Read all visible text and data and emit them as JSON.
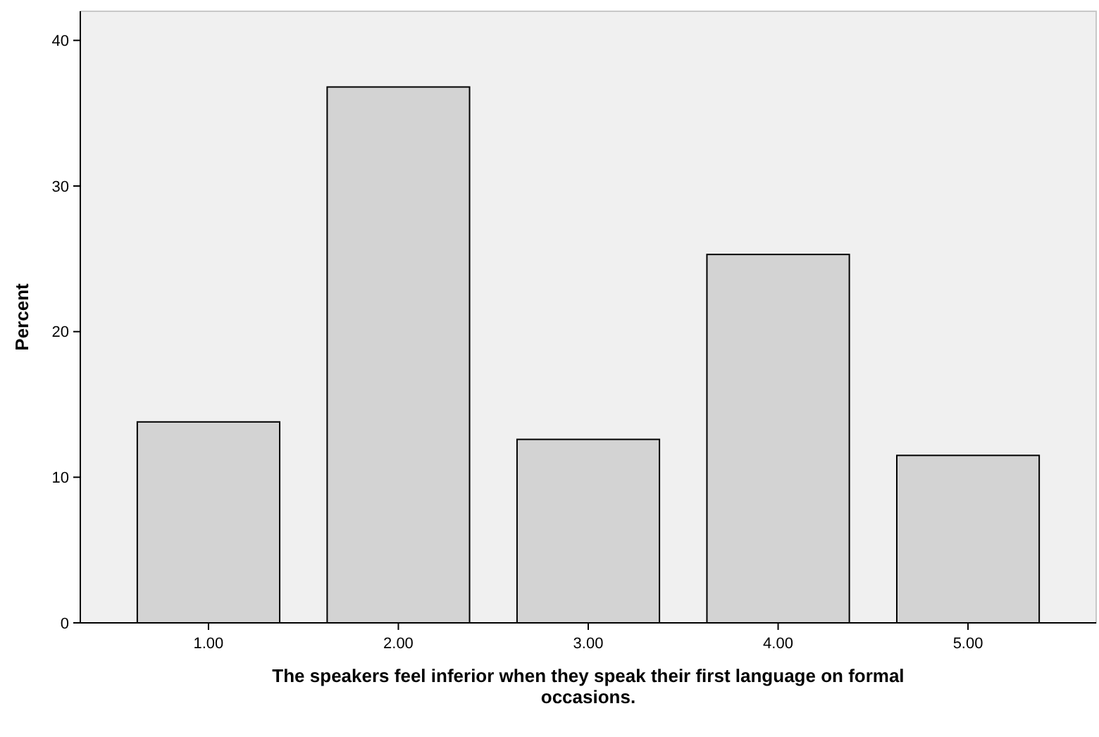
{
  "chart_data": {
    "type": "bar",
    "categories": [
      "1.00",
      "2.00",
      "3.00",
      "4.00",
      "5.00"
    ],
    "values": [
      13.8,
      36.8,
      12.6,
      25.3,
      11.5
    ],
    "color": "#d3d3d3",
    "ylim": [
      0,
      42
    ],
    "yticks": [
      0,
      10,
      20,
      30,
      40
    ],
    "grid": false,
    "ylabel": "Percent",
    "xlabel": "The speakers feel inferior when they speak their first language on formal occasions."
  }
}
